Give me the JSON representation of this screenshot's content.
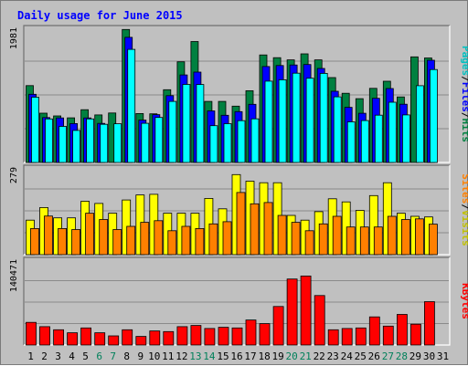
{
  "chart_data": [
    {
      "type": "bar",
      "panel": "pages-files-hits",
      "title": "Daily usage for June 2015",
      "categories": [
        "1",
        "2",
        "3",
        "4",
        "5",
        "6",
        "7",
        "8",
        "9",
        "10",
        "11",
        "12",
        "13",
        "14",
        "15",
        "16",
        "17",
        "18",
        "19",
        "20",
        "21",
        "22",
        "23",
        "24",
        "25",
        "26",
        "27",
        "28",
        "29",
        "30",
        "31"
      ],
      "weekend_days": [
        6,
        7,
        13,
        14,
        20,
        21,
        27,
        28
      ],
      "ymax_label": "1981",
      "ymax": 1981,
      "series": [
        {
          "name": "Hits",
          "color": "#008040",
          "values": [
            1127,
            723,
            682,
            654,
            773,
            697,
            726,
            1950,
            717,
            714,
            1067,
            1476,
            1773,
            896,
            896,
            826,
            1052,
            1577,
            1536,
            1505,
            1593,
            1505,
            1245,
            1014,
            936,
            1087,
            1191,
            961,
            1548,
            1533,
            0
          ]
        },
        {
          "name": "Files",
          "color": "#0000ff",
          "values": [
            1000,
            659,
            653,
            570,
            653,
            573,
            0,
            1835,
            621,
            702,
            980,
            1283,
            1325,
            756,
            692,
            745,
            853,
            1407,
            1422,
            1430,
            1436,
            1378,
            1044,
            808,
            721,
            941,
            1084,
            854,
            0,
            1499,
            0
          ]
        },
        {
          "name": "Pages",
          "color": "#00ffff",
          "values": [
            957,
            639,
            529,
            470,
            639,
            560,
            567,
            1658,
            574,
            660,
            895,
            1144,
            1143,
            540,
            569,
            613,
            640,
            1192,
            1213,
            1309,
            1236,
            1307,
            962,
            596,
            615,
            694,
            883,
            697,
            1126,
            1362,
            0
          ]
        }
      ],
      "right_label": [
        "Pages",
        "/",
        "Files",
        "/",
        "Hits"
      ]
    },
    {
      "type": "bar",
      "panel": "sites-visits",
      "categories": [
        "1",
        "2",
        "3",
        "4",
        "5",
        "6",
        "7",
        "8",
        "9",
        "10",
        "11",
        "12",
        "13",
        "14",
        "15",
        "16",
        "17",
        "18",
        "19",
        "20",
        "21",
        "22",
        "23",
        "24",
        "25",
        "26",
        "27",
        "28",
        "29",
        "30",
        "31"
      ],
      "ymax_label": "279",
      "ymax": 279,
      "series": [
        {
          "name": "Visits",
          "color": "#ffff00",
          "values": [
            110,
            150,
            117,
            117,
            170,
            163,
            132,
            174,
            190,
            192,
            132,
            132,
            132,
            179,
            146,
            255,
            234,
            229,
            229,
            125,
            110,
            137,
            178,
            168,
            141,
            188,
            229,
            132,
            122,
            120,
            0
          ]
        },
        {
          "name": "Sites",
          "color": "#ff8000",
          "values": [
            83,
            123,
            83,
            80,
            132,
            112,
            80,
            90,
            103,
            108,
            76,
            90,
            83,
            98,
            105,
            198,
            162,
            166,
            125,
            103,
            76,
            98,
            122,
            88,
            88,
            88,
            122,
            112,
            114,
            97,
            0
          ]
        }
      ],
      "right_label": [
        "Sites",
        "/",
        "Visits"
      ]
    },
    {
      "type": "bar",
      "panel": "kbytes",
      "categories": [
        "1",
        "2",
        "3",
        "4",
        "5",
        "6",
        "7",
        "8",
        "9",
        "10",
        "11",
        "12",
        "13",
        "14",
        "15",
        "16",
        "17",
        "18",
        "19",
        "20",
        "21",
        "22",
        "23",
        "24",
        "25",
        "26",
        "27",
        "28",
        "29",
        "30",
        "31"
      ],
      "ymax_label": "140471",
      "ymax": 140471,
      "series": [
        {
          "name": "KBytes",
          "color": "#ff0000",
          "values": [
            37000,
            30000,
            25000,
            20000,
            28000,
            20000,
            15000,
            25000,
            14000,
            23000,
            22000,
            30000,
            32000,
            27000,
            29000,
            28000,
            41000,
            35000,
            63000,
            108000,
            113000,
            81000,
            25000,
            27000,
            28000,
            46000,
            31000,
            50000,
            34000,
            71000,
            0
          ]
        }
      ],
      "right_label": [
        "KBytes"
      ]
    }
  ]
}
